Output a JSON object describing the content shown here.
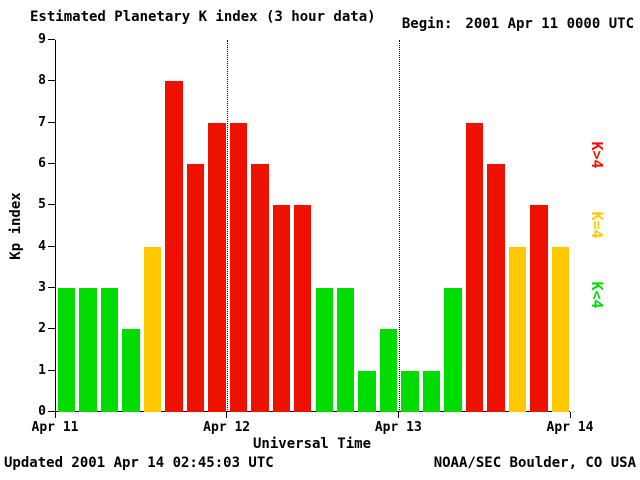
{
  "header": {
    "title": "Estimated Planetary K index (3 hour data)",
    "begin_label": "Begin:",
    "begin_value": "2001 Apr 11 0000 UTC"
  },
  "footer": {
    "updated": "Updated 2001 Apr 14 02:45:03 UTC",
    "source": "NOAA/SEC Boulder, CO USA"
  },
  "chart_data": {
    "type": "bar",
    "title": "Estimated Planetary K index (3 hour data)",
    "xlabel": "Universal Time",
    "ylabel": "Kp index",
    "ylim": [
      0,
      9
    ],
    "y_ticks": [
      0,
      1,
      2,
      3,
      4,
      5,
      6,
      7,
      8,
      9
    ],
    "x_tick_labels": [
      "Apr 11",
      "Apr 12",
      "Apr 13",
      "Apr 14"
    ],
    "slots_per_day": 8,
    "hours_per_slot": 3,
    "day_boundary_slots": [
      8,
      16
    ],
    "values": [
      3,
      3,
      3,
      2,
      4,
      8,
      6,
      7,
      7,
      6,
      5,
      5,
      3,
      3,
      1,
      2,
      1,
      1,
      3,
      7,
      6,
      4,
      5,
      4
    ],
    "colors": {
      "low": "#00DB00",
      "mid": "#FFC800",
      "high": "#EE1100"
    },
    "color_rule": "green K<4, yellow K=4, red K>4",
    "legend": [
      {
        "label": "K>4",
        "color": "#EE1100",
        "band": "high"
      },
      {
        "label": "K=4",
        "color": "#FFC800",
        "band": "mid"
      },
      {
        "label": "K<4",
        "color": "#00DB00",
        "band": "low"
      }
    ],
    "grid": "dotted vertical lines at day boundaries",
    "legend_position": "right"
  }
}
